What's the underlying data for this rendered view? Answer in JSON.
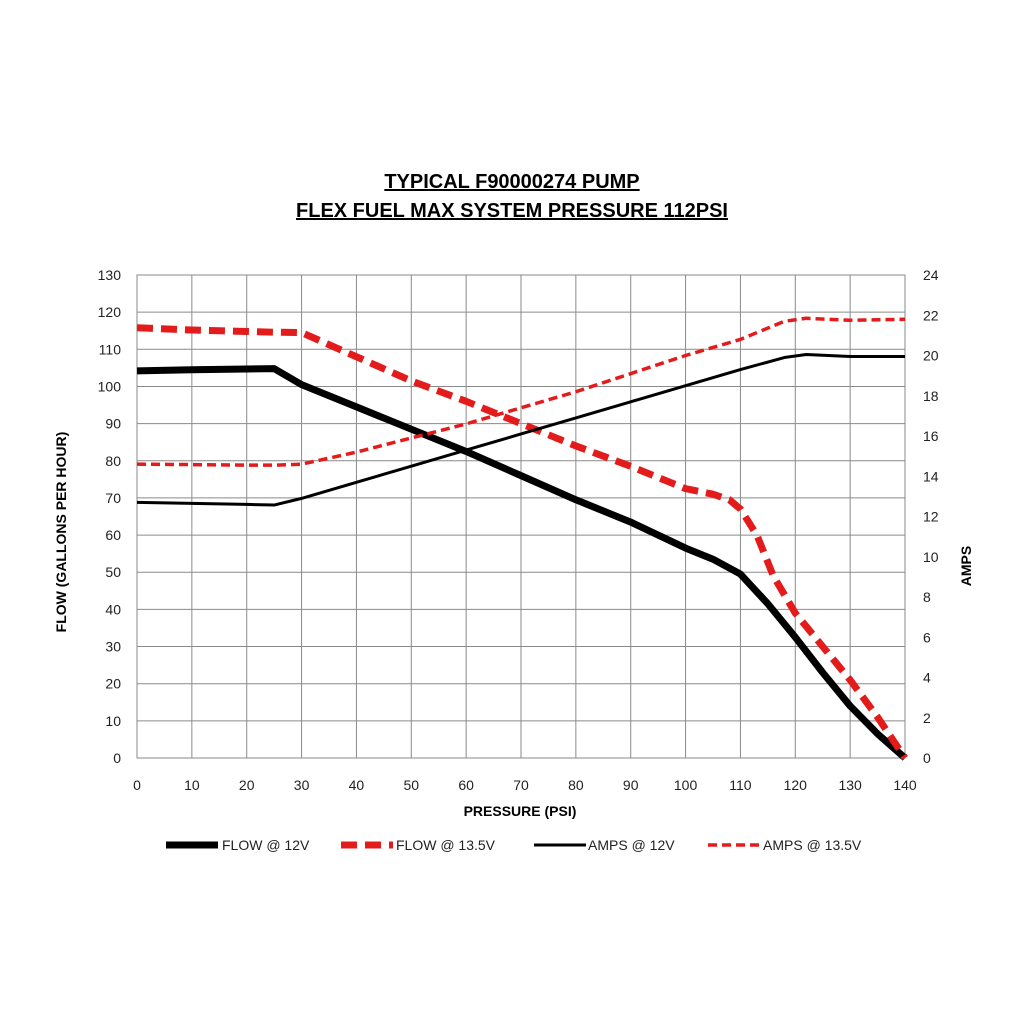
{
  "chart_data": {
    "type": "line",
    "title": [
      "TYPICAL F90000274 PUMP",
      "FLEX FUEL MAX SYSTEM PRESSURE 112PSI"
    ],
    "xlabel": "PRESSURE (PSI)",
    "ylabel": "FLOW (GALLONS PER HOUR)",
    "y2label": "AMPS",
    "xlim": [
      0,
      140
    ],
    "ylim": [
      0,
      130
    ],
    "y2lim": [
      0,
      24
    ],
    "x_ticks": [
      0,
      10,
      20,
      30,
      40,
      50,
      60,
      70,
      80,
      90,
      100,
      110,
      120,
      130,
      140
    ],
    "y_ticks": [
      0,
      10,
      20,
      30,
      40,
      50,
      60,
      70,
      80,
      90,
      100,
      110,
      120,
      130
    ],
    "y2_ticks": [
      0,
      2,
      4,
      6,
      8,
      10,
      12,
      14,
      16,
      18,
      20,
      22,
      24
    ],
    "grid": true,
    "legend_position": "bottom",
    "series": [
      {
        "name": "FLOW @ 12V",
        "axis": "left",
        "color": "#000000",
        "style": "solid-thick",
        "points": [
          [
            0,
            104.2
          ],
          [
            10,
            104.5
          ],
          [
            20,
            104.7
          ],
          [
            25,
            104.8
          ],
          [
            30,
            100.5
          ],
          [
            40,
            94.5
          ],
          [
            50,
            88.5
          ],
          [
            60,
            82.5
          ],
          [
            70,
            76
          ],
          [
            80,
            69.5
          ],
          [
            90,
            63.5
          ],
          [
            100,
            56.5
          ],
          [
            105,
            53.5
          ],
          [
            110,
            49.5
          ],
          [
            115,
            41.5
          ],
          [
            120,
            32.5
          ],
          [
            125,
            23
          ],
          [
            130,
            14
          ],
          [
            135,
            6.5
          ],
          [
            140,
            0
          ]
        ]
      },
      {
        "name": "FLOW @ 13.5V",
        "axis": "left",
        "color": "#e31b1b",
        "style": "dashed-thick",
        "points": [
          [
            0,
            115.8
          ],
          [
            10,
            115.2
          ],
          [
            20,
            114.8
          ],
          [
            25,
            114.6
          ],
          [
            30,
            114.5
          ],
          [
            40,
            108
          ],
          [
            50,
            101.5
          ],
          [
            60,
            96
          ],
          [
            70,
            90
          ],
          [
            80,
            84
          ],
          [
            90,
            78.5
          ],
          [
            100,
            72.5
          ],
          [
            105,
            71
          ],
          [
            108,
            69.5
          ],
          [
            110,
            67
          ],
          [
            113,
            60
          ],
          [
            116,
            49
          ],
          [
            120,
            39
          ],
          [
            125,
            30
          ],
          [
            130,
            21
          ],
          [
            135,
            11
          ],
          [
            140,
            0
          ]
        ]
      },
      {
        "name": "AMPS @ 12V",
        "axis": "right",
        "color": "#000000",
        "style": "solid",
        "points": [
          [
            0,
            12.7
          ],
          [
            10,
            12.65
          ],
          [
            20,
            12.6
          ],
          [
            25,
            12.57
          ],
          [
            30,
            12.9
          ],
          [
            40,
            13.7
          ],
          [
            50,
            14.5
          ],
          [
            60,
            15.3
          ],
          [
            70,
            16.1
          ],
          [
            80,
            16.9
          ],
          [
            90,
            17.7
          ],
          [
            100,
            18.5
          ],
          [
            110,
            19.3
          ],
          [
            118,
            19.9
          ],
          [
            122,
            20.05
          ],
          [
            126,
            20.0
          ],
          [
            130,
            19.95
          ],
          [
            140,
            19.95
          ]
        ]
      },
      {
        "name": "AMPS @ 13.5V",
        "axis": "right",
        "color": "#e31b1b",
        "style": "dashed",
        "points": [
          [
            0,
            14.6
          ],
          [
            10,
            14.58
          ],
          [
            20,
            14.55
          ],
          [
            25,
            14.55
          ],
          [
            30,
            14.6
          ],
          [
            40,
            15.2
          ],
          [
            50,
            15.9
          ],
          [
            60,
            16.6
          ],
          [
            70,
            17.4
          ],
          [
            80,
            18.2
          ],
          [
            90,
            19.1
          ],
          [
            100,
            20.0
          ],
          [
            110,
            20.8
          ],
          [
            118,
            21.7
          ],
          [
            122,
            21.85
          ],
          [
            126,
            21.8
          ],
          [
            130,
            21.75
          ],
          [
            140,
            21.8
          ]
        ]
      }
    ]
  }
}
